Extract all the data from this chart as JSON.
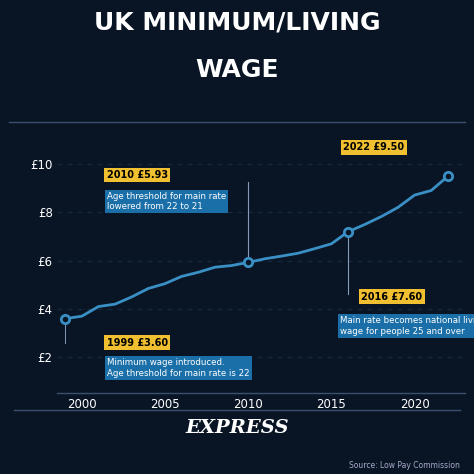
{
  "title_line1": "UK MINIMUM/LIVING",
  "title_line2": "WAGE",
  "bg_color": "#091524",
  "line_color": "#3a8fc5",
  "grid_color": "#162840",
  "text_color": "#ffffff",
  "yellow_box_color": "#f0c030",
  "blue_box_color": "#1a6fa8",
  "footer_text": "EXPRESS",
  "source_text": "Source: Low Pay Commission",
  "years": [
    1999,
    2000,
    2001,
    2002,
    2003,
    2004,
    2005,
    2006,
    2007,
    2008,
    2009,
    2010,
    2011,
    2012,
    2013,
    2014,
    2015,
    2016,
    2017,
    2018,
    2019,
    2020,
    2021,
    2022
  ],
  "wages": [
    3.6,
    3.7,
    4.1,
    4.2,
    4.5,
    4.85,
    5.05,
    5.35,
    5.52,
    5.73,
    5.8,
    5.93,
    6.08,
    6.19,
    6.31,
    6.5,
    6.7,
    7.2,
    7.5,
    7.83,
    8.21,
    8.72,
    8.91,
    9.5
  ],
  "marker_years": [
    1999,
    2010,
    2016,
    2022
  ],
  "marker_wages": [
    3.6,
    5.93,
    7.2,
    9.5
  ],
  "xlim": [
    1998.5,
    2023.0
  ],
  "ylim": [
    0.5,
    11.5
  ],
  "yticks": [
    2,
    4,
    6,
    8,
    10
  ],
  "ytick_labels": [
    "£2",
    "£4",
    "£6",
    "£8",
    "£10"
  ],
  "xticks": [
    2000,
    2005,
    2010,
    2015,
    2020
  ]
}
